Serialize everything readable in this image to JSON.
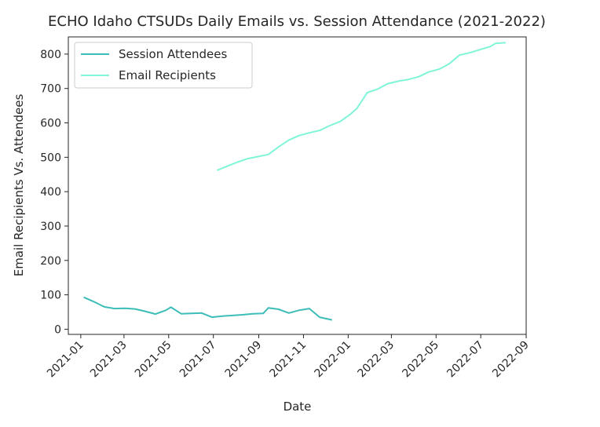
{
  "chart_data": {
    "type": "line",
    "title": "ECHO Idaho CTSUDs Daily Emails vs. Session Attendance (2021-2022)",
    "xlabel": "Date",
    "ylabel": "Email Recipients Vs. Attendees",
    "x_axis": "date",
    "xlim": [
      "2020-12-15",
      "2022-09-01"
    ],
    "ylim": [
      -15,
      850
    ],
    "x_ticks": [
      "2021-01",
      "2021-03",
      "2021-05",
      "2021-07",
      "2021-09",
      "2021-11",
      "2022-01",
      "2022-03",
      "2022-05",
      "2022-07",
      "2022-09"
    ],
    "y_ticks": [
      0,
      100,
      200,
      300,
      400,
      500,
      600,
      700,
      800
    ],
    "grid": false,
    "legend": "top-left",
    "series": [
      {
        "name": "Session Attendees",
        "color": "#3dbdb8",
        "points": [
          [
            "2021-01-05",
            93
          ],
          [
            "2021-01-19",
            80
          ],
          [
            "2021-02-02",
            65
          ],
          [
            "2021-02-16",
            60
          ],
          [
            "2021-03-02",
            61
          ],
          [
            "2021-03-16",
            59
          ],
          [
            "2021-03-30",
            52
          ],
          [
            "2021-04-13",
            44
          ],
          [
            "2021-04-27",
            55
          ],
          [
            "2021-05-04",
            64
          ],
          [
            "2021-05-18",
            45
          ],
          [
            "2021-06-01",
            46
          ],
          [
            "2021-06-15",
            47
          ],
          [
            "2021-06-29",
            35
          ],
          [
            "2021-07-13",
            38
          ],
          [
            "2021-07-27",
            40
          ],
          [
            "2021-08-10",
            42
          ],
          [
            "2021-08-24",
            45
          ],
          [
            "2021-09-07",
            46
          ],
          [
            "2021-09-14",
            62
          ],
          [
            "2021-09-28",
            58
          ],
          [
            "2021-10-12",
            47
          ],
          [
            "2021-10-26",
            55
          ],
          [
            "2021-11-09",
            60
          ],
          [
            "2021-11-23",
            35
          ],
          [
            "2021-12-10",
            27
          ]
        ]
      },
      {
        "name": "Email Recipients",
        "color": "#7ff5d8",
        "points": [
          [
            "2021-07-06",
            462
          ],
          [
            "2021-07-20",
            474
          ],
          [
            "2021-08-03",
            486
          ],
          [
            "2021-08-17",
            496
          ],
          [
            "2021-08-31",
            502
          ],
          [
            "2021-09-14",
            508
          ],
          [
            "2021-09-28",
            530
          ],
          [
            "2021-10-12",
            550
          ],
          [
            "2021-10-26",
            563
          ],
          [
            "2021-11-09",
            571
          ],
          [
            "2021-11-23",
            578
          ],
          [
            "2021-12-07",
            592
          ],
          [
            "2021-12-21",
            604
          ],
          [
            "2022-01-04",
            625
          ],
          [
            "2022-01-13",
            642
          ],
          [
            "2022-01-27",
            688
          ],
          [
            "2022-02-10",
            698
          ],
          [
            "2022-02-24",
            714
          ],
          [
            "2022-03-10",
            721
          ],
          [
            "2022-03-24",
            726
          ],
          [
            "2022-04-07",
            734
          ],
          [
            "2022-04-21",
            748
          ],
          [
            "2022-05-05",
            756
          ],
          [
            "2022-05-19",
            772
          ],
          [
            "2022-06-02",
            797
          ],
          [
            "2022-06-16",
            804
          ],
          [
            "2022-06-30",
            813
          ],
          [
            "2022-07-14",
            822
          ],
          [
            "2022-07-21",
            831
          ],
          [
            "2022-08-04",
            833
          ]
        ]
      }
    ]
  }
}
